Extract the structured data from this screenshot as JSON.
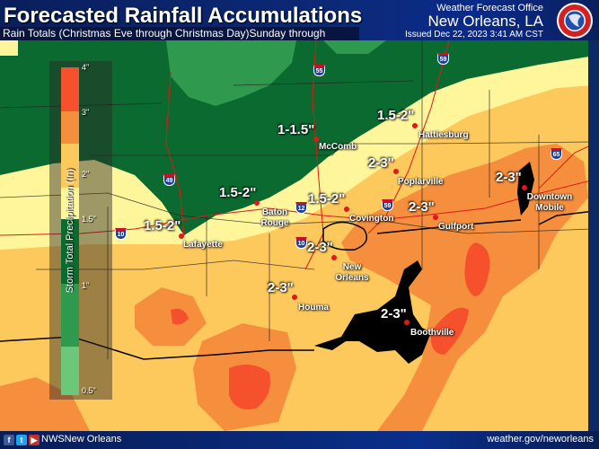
{
  "header": {
    "title": "Forecasted Rainfall Accumulations",
    "subtitle": "Rain Totals (Christmas Eve through Christmas Day)Sunday through Monday",
    "office_line": "Weather Forecast Office",
    "office_city": "New Orleans, LA",
    "issued": "Issued Dec 22, 2023 3:41 AM CST",
    "logo_text": "NATIONAL WEATHER SERVICE"
  },
  "legend": {
    "title": "Storm Total Precipitation (In)",
    "ticks": [
      "4\"",
      "3\"",
      "2\"",
      "1.5\"",
      "1\"",
      "0.5\""
    ],
    "colors": [
      "#f4512c",
      "#f58f3e",
      "#fdc95c",
      "#fff59a",
      "#0b6a2f",
      "#2f9a4e",
      "#6cc77a"
    ]
  },
  "map": {
    "amount_labels": [
      "1-1.5\"",
      "1.5-2\"",
      "2-3\"",
      "1.5-2\"",
      "1.5-2\"",
      "2-3\"",
      "2-3\"",
      "1.5-2\"",
      "2-3\"",
      "2-3\"",
      "2-3\""
    ],
    "cities": [
      "McComb",
      "Hattiesburg",
      "Poplarville",
      "Baton Rouge",
      "Covington",
      "Gulfport",
      "Downtown Mobile",
      "Lafayette",
      "New Orleans",
      "Houma",
      "Boothville"
    ],
    "interstates": [
      "55",
      "59",
      "49",
      "12",
      "10",
      "10",
      "59",
      "65"
    ]
  },
  "footer": {
    "social_icons": [
      "facebook-icon",
      "twitter-icon",
      "youtube-icon"
    ],
    "handle": "NWSNew Orleans",
    "url": "weather.gov/neworleans"
  }
}
